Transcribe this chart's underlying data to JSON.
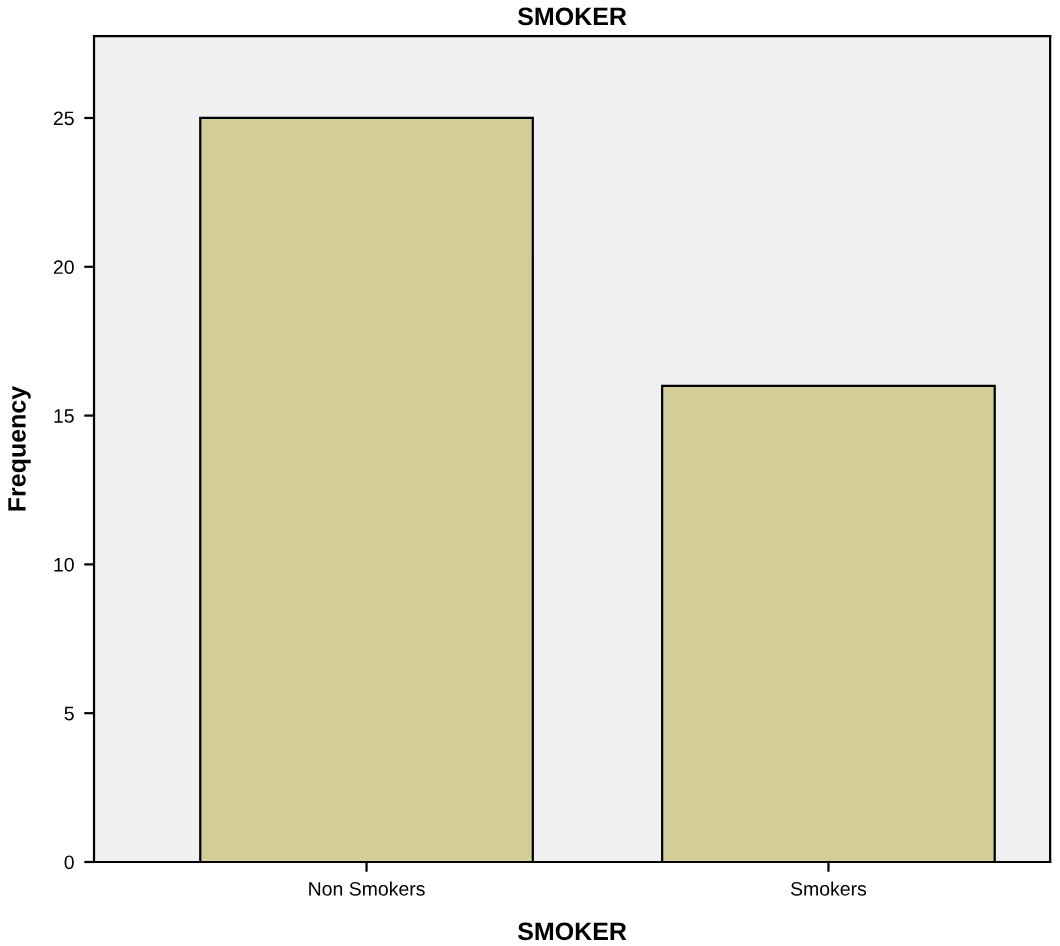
{
  "chart_data": {
    "type": "bar",
    "title": "SMOKER",
    "xlabel": "SMOKER",
    "ylabel": "Frequency",
    "categories": [
      "Non Smokers",
      "Smokers"
    ],
    "values": [
      25,
      16
    ],
    "color": "#d3ce97",
    "ylim": [
      0,
      27.75
    ],
    "yticks": [
      0,
      5,
      10,
      15,
      20,
      25
    ],
    "grid": false,
    "legend": false
  }
}
